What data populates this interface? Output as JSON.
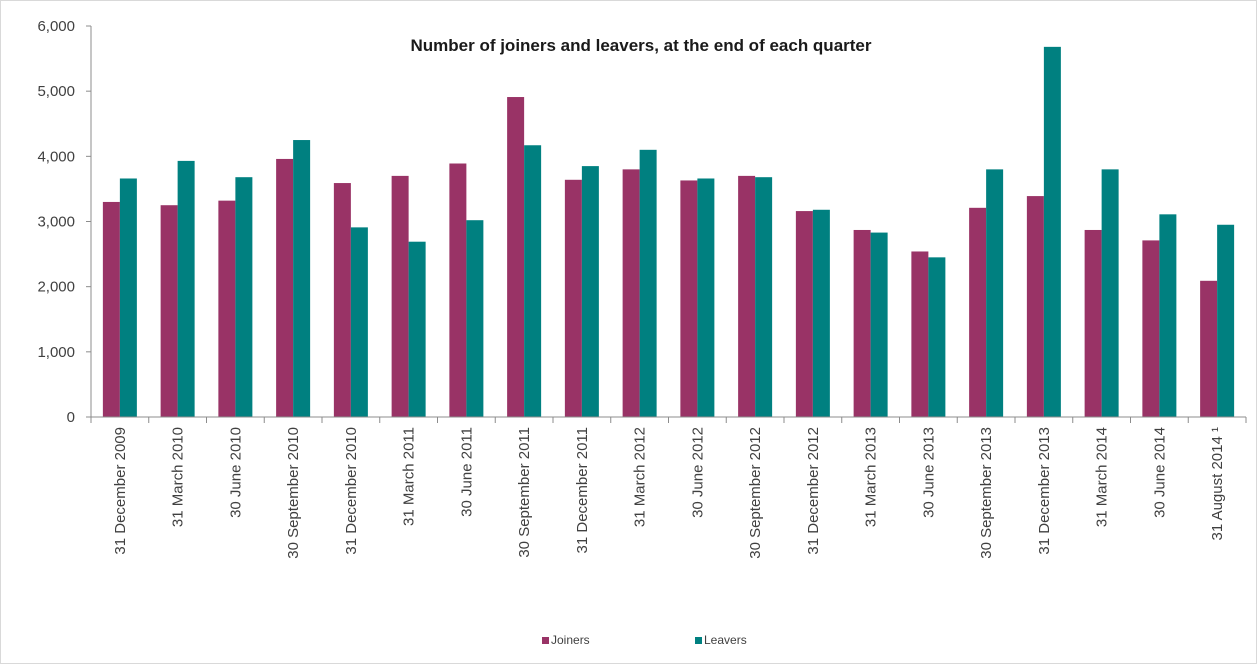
{
  "chart_data": {
    "type": "bar",
    "title": "Number of joiners and leavers, at the end of each quarter",
    "xlabel": "",
    "ylabel": "",
    "ylim": [
      0,
      6000
    ],
    "yticks": [
      0,
      1000,
      2000,
      3000,
      4000,
      5000,
      6000
    ],
    "ytick_labels": [
      "0",
      "1,000",
      "2,000",
      "3,000",
      "4,000",
      "5,000",
      "6,000"
    ],
    "grid": false,
    "legend_position": "bottom",
    "categories": [
      "31 December 2009",
      "31 March 2010",
      "30 June 2010",
      "30 September 2010",
      "31 December 2010",
      "31 March 2011",
      "30 June 2011",
      "30 September 2011",
      "31 December 2011",
      "31 March 2012",
      "30 June 2012",
      "30 September 2012",
      "31 December 2012",
      "31 March 2013",
      "30 June 2013",
      "30 September 2013",
      "31 December 2013",
      "31 March 2014",
      "30 June 2014",
      "31 August 2014 ¹"
    ],
    "series": [
      {
        "name": "Joiners",
        "color": "#993366",
        "values": [
          3300,
          3250,
          3320,
          3960,
          3590,
          3700,
          3890,
          4910,
          3640,
          3800,
          3630,
          3700,
          3160,
          2870,
          2540,
          3210,
          3390,
          2870,
          2710,
          2090
        ]
      },
      {
        "name": "Leavers",
        "color": "#008080",
        "values": [
          3660,
          3930,
          3680,
          4250,
          2910,
          2690,
          3020,
          4170,
          3850,
          4100,
          3660,
          3680,
          3180,
          2830,
          2450,
          3800,
          5680,
          3800,
          3110,
          2950
        ]
      }
    ]
  }
}
